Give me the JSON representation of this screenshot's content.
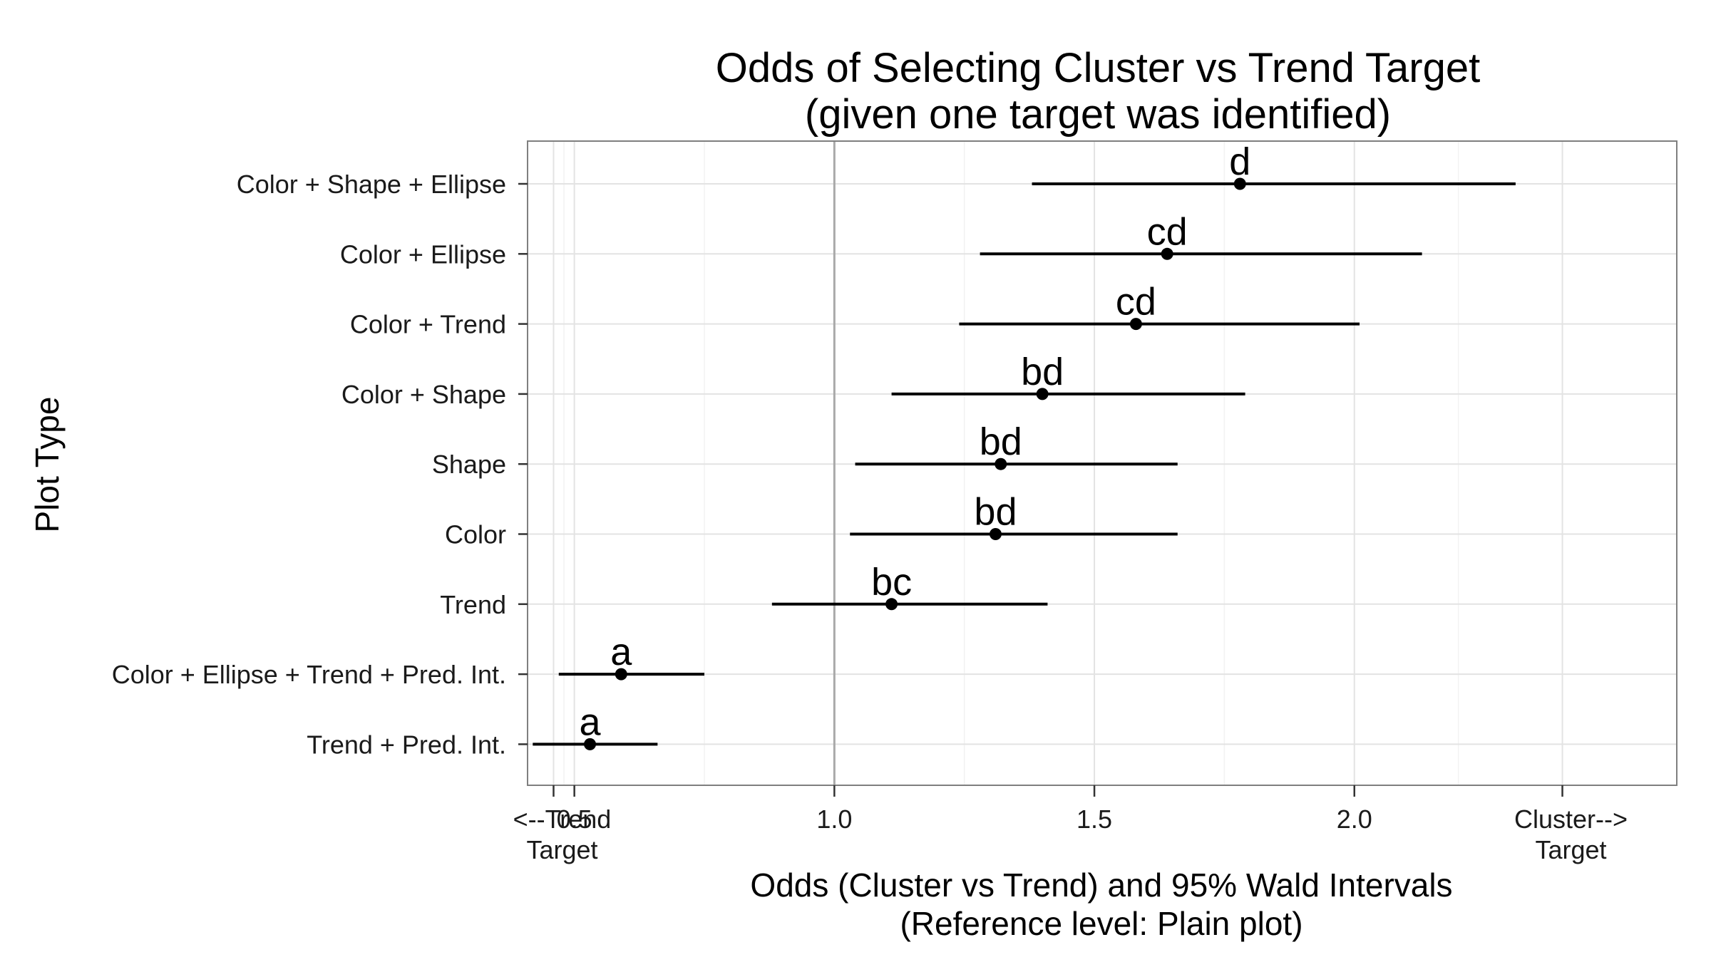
{
  "chart_data": {
    "type": "forest",
    "title_lines": [
      "Odds of Selecting Cluster vs Trend Target",
      "(given one target was identified)"
    ],
    "xlabel_lines": [
      "Odds (Cluster vs Trend) and 95% Wald Intervals",
      "(Reference level: Plain plot)"
    ],
    "ylabel": "Plot Type",
    "xlim": [
      0.41,
      2.62
    ],
    "x_ticks": [
      {
        "value": 0.5,
        "lines": [
          "0.5"
        ]
      },
      {
        "value": 1.0,
        "lines": [
          "1.0"
        ]
      },
      {
        "value": 1.5,
        "lines": [
          "1.5"
        ]
      },
      {
        "value": 2.0,
        "lines": [
          "2.0"
        ]
      }
    ],
    "x_end_ticks": [
      {
        "value": 0.46,
        "lines": [
          "<--Trend",
          "Target"
        ]
      },
      {
        "value": 2.4,
        "lines": [
          "Cluster-->",
          "Target"
        ]
      }
    ],
    "reference_line": 1.0,
    "grid": true,
    "categories": [
      "Color + Shape + Ellipse",
      "Color + Ellipse",
      "Color + Trend",
      "Color + Shape",
      "Shape",
      "Color",
      "Trend",
      "Color + Ellipse + Trend + Pred. Int.",
      "Trend + Pred. Int."
    ],
    "points": [
      {
        "category": "Color + Shape + Ellipse",
        "odds": 1.78,
        "lower": 1.38,
        "upper": 2.31,
        "group_label": "d"
      },
      {
        "category": "Color + Ellipse",
        "odds": 1.64,
        "lower": 1.28,
        "upper": 2.13,
        "group_label": "cd"
      },
      {
        "category": "Color + Trend",
        "odds": 1.58,
        "lower": 1.24,
        "upper": 2.01,
        "group_label": "cd"
      },
      {
        "category": "Color + Shape",
        "odds": 1.4,
        "lower": 1.11,
        "upper": 1.79,
        "group_label": "bd"
      },
      {
        "category": "Shape",
        "odds": 1.32,
        "lower": 1.04,
        "upper": 1.66,
        "group_label": "bd"
      },
      {
        "category": "Color",
        "odds": 1.31,
        "lower": 1.03,
        "upper": 1.66,
        "group_label": "bd"
      },
      {
        "category": "Trend",
        "odds": 1.11,
        "lower": 0.88,
        "upper": 1.41,
        "group_label": "bc"
      },
      {
        "category": "Color + Ellipse + Trend + Pred. Int.",
        "odds": 0.59,
        "lower": 0.47,
        "upper": 0.75,
        "group_label": "a"
      },
      {
        "category": "Trend + Pred. Int.",
        "odds": 0.53,
        "lower": 0.42,
        "upper": 0.66,
        "group_label": "a"
      }
    ]
  }
}
